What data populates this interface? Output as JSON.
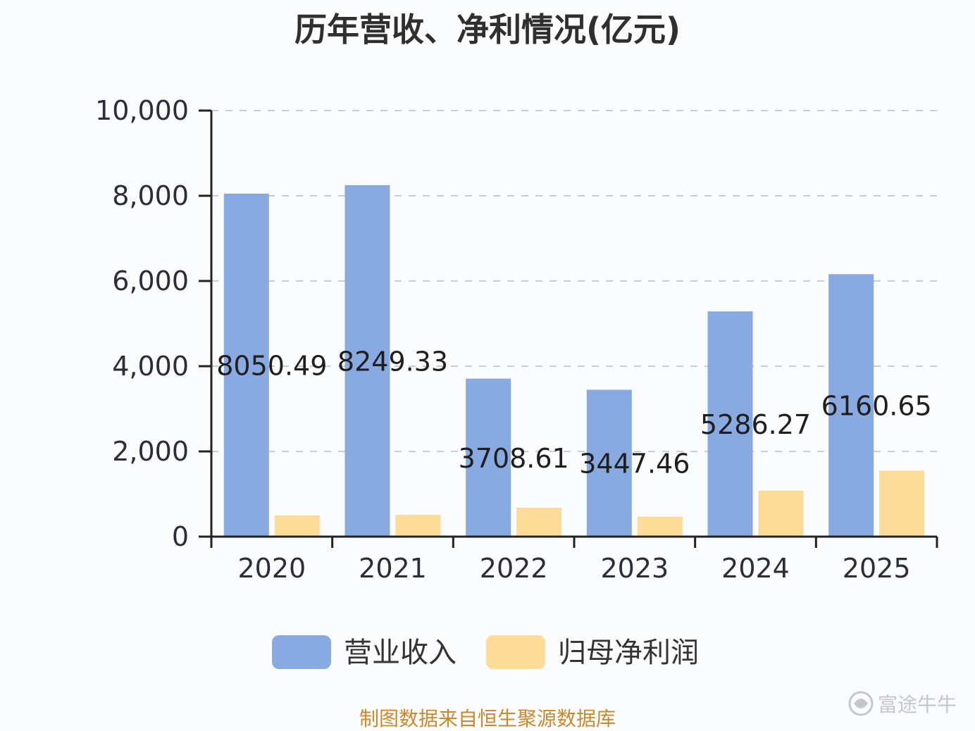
{
  "chart_data": {
    "type": "bar",
    "title": "历年营收、净利情况(亿元)",
    "categories": [
      "2020",
      "2021",
      "2022",
      "2023",
      "2024",
      "2025"
    ],
    "series": [
      {
        "name": "营业收入",
        "color": "#89aae0",
        "values": [
          8050.49,
          8249.33,
          3708.61,
          3447.46,
          5286.27,
          6160.65
        ],
        "data_labels": [
          "8050.49",
          "8249.33",
          "3708.61",
          "3447.46",
          "5286.27",
          "6160.65"
        ]
      },
      {
        "name": "归母净利润",
        "color": "#fddb99",
        "values": [
          500,
          510,
          680,
          470,
          1080,
          1550
        ]
      }
    ],
    "xlabel": "",
    "ylabel": "",
    "ylim": [
      0,
      10000
    ],
    "yticks": [
      0,
      2000,
      4000,
      6000,
      8000,
      10000
    ],
    "ytick_labels": [
      "0",
      "2,000",
      "4,000",
      "6,000",
      "8,000",
      "10,000"
    ],
    "grid": true,
    "grid_style": "dashed",
    "legend_position": "bottom-center"
  },
  "source_note": "制图数据来自恒生聚源数据库",
  "watermark": {
    "text": "富途牛牛",
    "icon": "futu-logo-icon"
  }
}
